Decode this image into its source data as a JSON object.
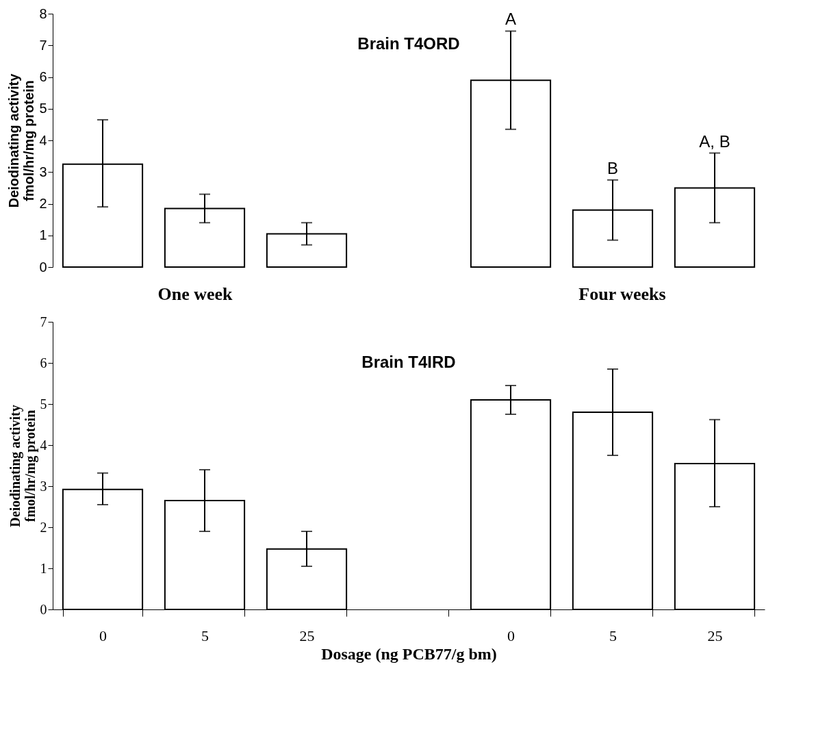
{
  "chart_data": [
    {
      "type": "bar",
      "title": "Brain T4ORD",
      "ylabel": "Deiodinating activity\nfmol/hr/mg protein",
      "categories": [
        "0",
        "5",
        "25",
        null,
        "0",
        "5",
        "25"
      ],
      "series": [
        {
          "color": "#ffffff",
          "values": [
            3.25,
            1.85,
            1.05,
            null,
            5.9,
            1.8,
            2.5
          ],
          "errors": [
            [
              1.9,
              4.65
            ],
            [
              1.4,
              2.3
            ],
            [
              0.7,
              1.4
            ],
            null,
            [
              4.35,
              7.45
            ],
            [
              0.85,
              2.75
            ],
            [
              1.4,
              3.6
            ]
          ],
          "value_labels": [
            null,
            null,
            null,
            null,
            "A",
            "B",
            "A, B"
          ]
        }
      ],
      "ylim": [
        0,
        8
      ],
      "yticks": [
        0,
        1,
        2,
        3,
        4,
        5,
        6,
        7,
        8
      ],
      "grid": false,
      "tick_labels": "y"
    },
    {
      "type": "bar",
      "title": "Brain T4IRD",
      "ylabel": "Deiodinating activity\nfmol/hr/mg protein",
      "xlabel": "Dosage (ng PCB77/g bm)",
      "categories": [
        "0",
        "5",
        "25",
        null,
        "0",
        "5",
        "25"
      ],
      "series": [
        {
          "color": "#ffffff",
          "values": [
            2.92,
            2.65,
            1.47,
            null,
            5.1,
            4.8,
            3.55
          ],
          "errors": [
            [
              2.55,
              3.32
            ],
            [
              1.9,
              3.4
            ],
            [
              1.05,
              1.9
            ],
            null,
            [
              4.75,
              5.45
            ],
            [
              3.75,
              5.85
            ],
            [
              2.5,
              4.62
            ]
          ]
        }
      ],
      "ylim": [
        0,
        7
      ],
      "yticks": [
        0,
        1,
        2,
        3,
        4,
        5,
        6,
        7
      ],
      "grid": false,
      "annotations": [
        "One week",
        "Four weeks"
      ]
    }
  ]
}
